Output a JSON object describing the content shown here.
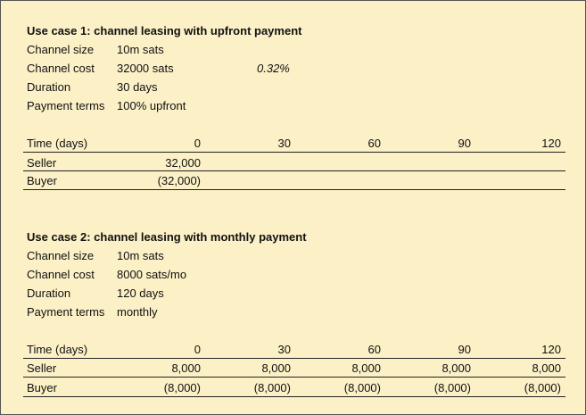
{
  "case1": {
    "title": "Use case 1: channel leasing with upfront payment",
    "rows": [
      {
        "label": "Channel size",
        "value": "10m sats"
      },
      {
        "label": "Channel cost",
        "value": "32000 sats"
      },
      {
        "label": "Duration",
        "value": "30 days"
      },
      {
        "label": "Payment terms",
        "value": "100% upfront"
      }
    ],
    "percent": "0.32%",
    "table": {
      "header_label": "Time (days)",
      "times": [
        "0",
        "30",
        "60",
        "90",
        "120"
      ],
      "seller_label": "Seller",
      "seller": [
        "32,000",
        "",
        "",
        "",
        ""
      ],
      "buyer_label": "Buyer",
      "buyer": [
        "(32,000)",
        "",
        "",
        "",
        ""
      ]
    }
  },
  "case2": {
    "title": "Use case 2: channel leasing with monthly payment",
    "rows": [
      {
        "label": "Channel size",
        "value": "10m sats"
      },
      {
        "label": "Channel cost",
        "value": "8000 sats/mo"
      },
      {
        "label": "Duration",
        "value": "120 days"
      },
      {
        "label": "Payment terms",
        "value": "monthly"
      }
    ],
    "table": {
      "header_label": "Time (days)",
      "times": [
        "0",
        "30",
        "60",
        "90",
        "120"
      ],
      "seller_label": "Seller",
      "seller": [
        "8,000",
        "8,000",
        "8,000",
        "8,000",
        "8,000"
      ],
      "buyer_label": "Buyer",
      "buyer": [
        "(8,000)",
        "(8,000)",
        "(8,000)",
        "(8,000)",
        "(8,000)"
      ]
    }
  }
}
